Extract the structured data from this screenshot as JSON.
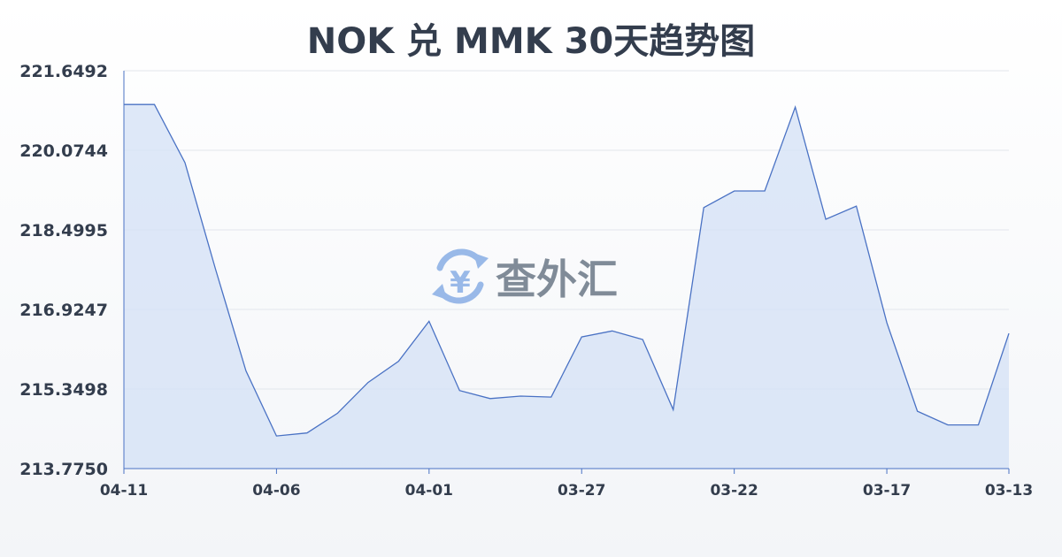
{
  "chart_data": {
    "type": "area",
    "title": "NOK 兑 MMK 30天趋势图",
    "xlabel": "",
    "ylabel": "",
    "ylim": [
      213.775,
      221.6492
    ],
    "y_ticks": [
      "221.6492",
      "220.0744",
      "218.4995",
      "216.9247",
      "215.3498",
      "213.7750"
    ],
    "x_tick_labels": [
      "04-11",
      "04-06",
      "04-01",
      "03-27",
      "03-22",
      "03-17",
      "03-13"
    ],
    "grid": true,
    "series": [
      {
        "values": [
          220.98,
          220.98,
          219.83,
          217.73,
          215.71,
          214.42,
          214.48,
          214.87,
          215.48,
          215.9,
          216.69,
          215.32,
          215.16,
          215.21,
          215.19,
          216.38,
          216.5,
          216.33,
          214.94,
          218.94,
          219.27,
          219.27,
          220.93,
          218.71,
          218.97,
          216.66,
          214.91,
          214.64,
          214.64,
          216.45
        ]
      }
    ],
    "colors": {
      "line": "#4a72c4",
      "fill": "#d6e2f6"
    }
  },
  "watermark": {
    "text": "查外汇",
    "icon": "yen-exchange-icon"
  }
}
